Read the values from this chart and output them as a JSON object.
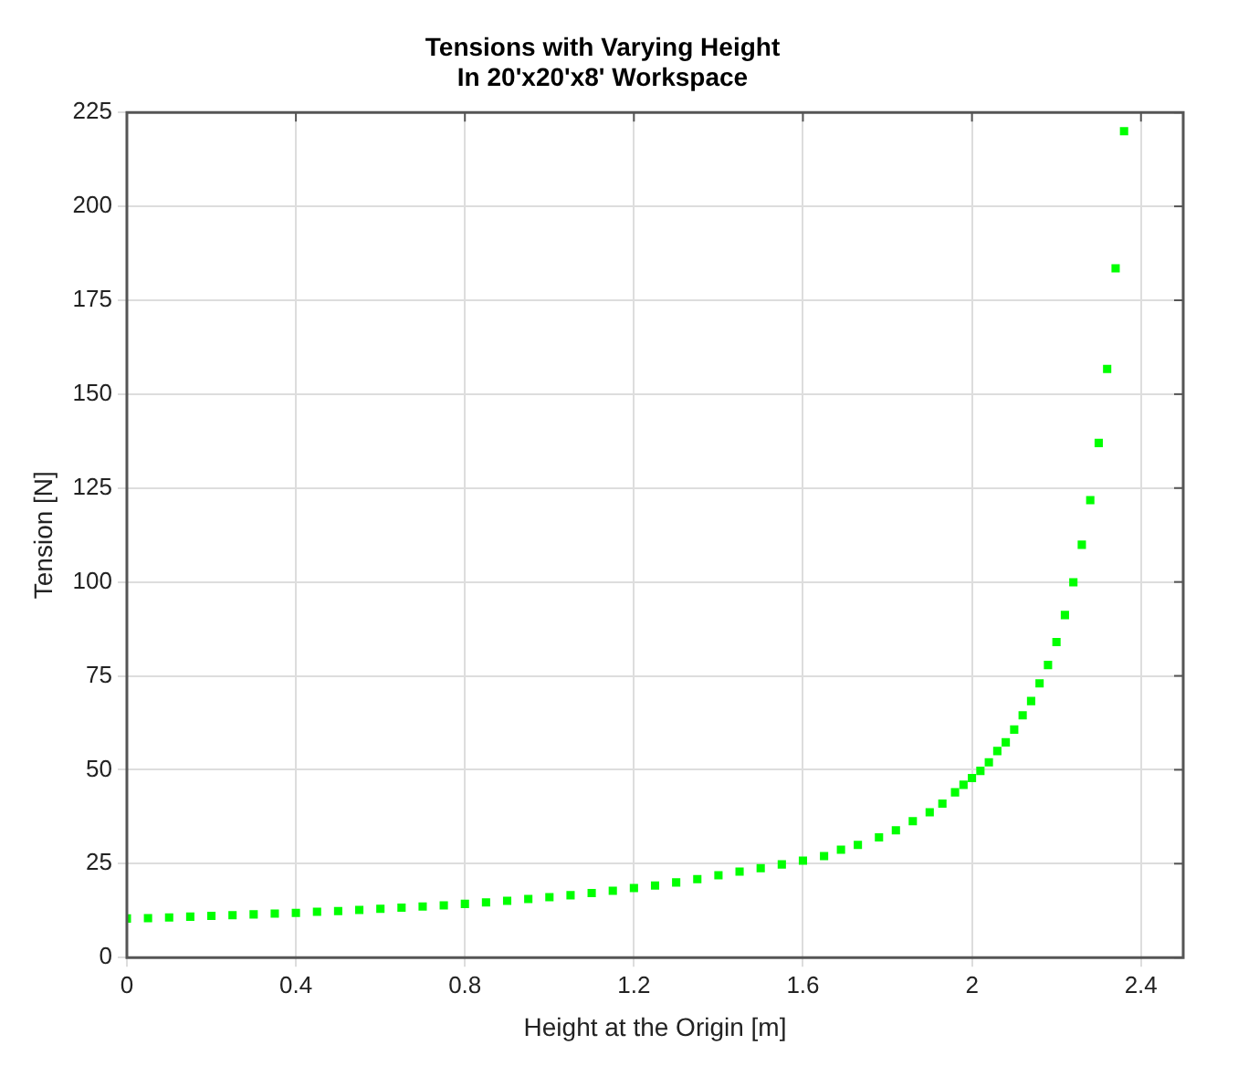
{
  "chart_data": {
    "type": "scatter",
    "title": "Tensions with Varying Height\nIn 20'x20'x8' Workspace",
    "xlabel": "Height at the Origin [m]",
    "ylabel": "Tension [N]",
    "series": [
      {
        "color": "#00ff00",
        "x": [
          0,
          0.05,
          0.1,
          0.15,
          0.2,
          0.25,
          0.3,
          0.35,
          0.4,
          0.45,
          0.5,
          0.55,
          0.6,
          0.65,
          0.7,
          0.75,
          0.8,
          0.85,
          0.9,
          0.95,
          1.0,
          1.05,
          1.1,
          1.15,
          1.2,
          1.25,
          1.3,
          1.35,
          1.4,
          1.45,
          1.5,
          1.55,
          1.6,
          1.65,
          1.69,
          1.73,
          1.78,
          1.82,
          1.86,
          1.9,
          1.93,
          1.96,
          1.98,
          2.0,
          2.02,
          2.04,
          2.06,
          2.08,
          2.1,
          2.12,
          2.14,
          2.16,
          2.18,
          2.2,
          2.22,
          2.24,
          2.26,
          2.28,
          2.3,
          2.32,
          2.34,
          2.36
        ],
        "values": [
          10.4,
          10.5,
          10.7,
          10.9,
          11.1,
          11.3,
          11.5,
          11.7,
          11.9,
          12.2,
          12.4,
          12.7,
          13,
          13.3,
          13.6,
          13.9,
          14.3,
          14.7,
          15.1,
          15.6,
          16.1,
          16.6,
          17.2,
          17.8,
          18.5,
          19.2,
          20,
          20.9,
          21.9,
          22.9,
          23.8,
          24.8,
          25.8,
          27,
          28.7,
          30,
          32,
          33.9,
          36.3,
          38.7,
          41,
          44,
          46,
          47.8,
          49.7,
          52,
          55,
          57.3,
          60.7,
          64.5,
          68.3,
          73,
          77.9,
          84,
          91.2,
          99.9,
          109.9,
          121.8,
          137,
          156.7,
          183.5,
          220
        ]
      }
    ],
    "xlim": [
      0,
      2.5
    ],
    "xticks": [
      0,
      0.4,
      0.8,
      1.2,
      1.6,
      2,
      2.4
    ],
    "ylim": [
      0,
      225
    ],
    "yticks": [
      0,
      25,
      50,
      75,
      100,
      125,
      150,
      175,
      200,
      225
    ],
    "grid": true,
    "legend": false,
    "marker": "square"
  }
}
